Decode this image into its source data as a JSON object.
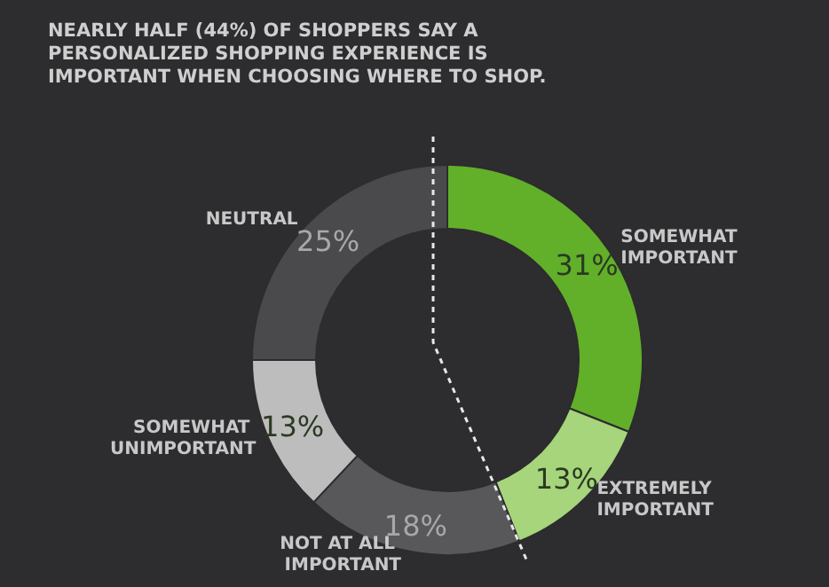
{
  "chart_data": {
    "type": "donut",
    "title": "NEARLY HALF (44%) OF SHOPPERS SAY A PERSONALIZED SHOPPING EXPERIENCE IS IMPORTANT WHEN CHOOSING WHERE TO SHOP.",
    "categories": [
      "SOMEWHAT IMPORTANT",
      "EXTREMELY IMPORTANT",
      "NOT AT ALL IMPORTANT",
      "SOMEWHAT UNIMPORTANT",
      "NEUTRAL"
    ],
    "values": [
      31,
      13,
      18,
      13,
      25
    ],
    "colors": [
      "#62b02a",
      "#a6d57c",
      "#58585a",
      "#bdbdbd",
      "#4a4a4c"
    ],
    "value_labels": [
      "31%",
      "13%",
      "18%",
      "13%",
      "25%"
    ],
    "legend": false
  }
}
